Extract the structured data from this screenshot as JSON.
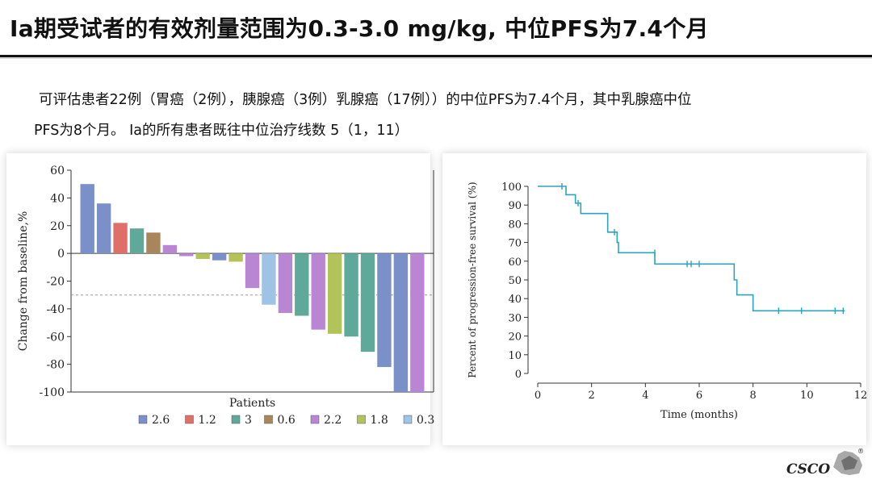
{
  "slide": {
    "title": "Ia期受试者的有效剂量范围为0.3-3.0 mg/kg, 中位PFS为7.4个月",
    "body_line1": "可评估患者22例（胃癌（2例），胰腺癌（3例）乳腺癌（17例））的中位PFS为7.4个月，其中乳腺癌中位",
    "body_line2": "PFS为8个月。 Ia的所有患者既往中位治疗线数 5（1，11）",
    "logo_text": "CSCO",
    "logo_mark": "®"
  },
  "chart_data": [
    {
      "type": "bar",
      "xlabel": "Patients",
      "ylabel": "Change from baseline,%",
      "ylim": [
        -100,
        60
      ],
      "yticks": [
        60,
        40,
        20,
        0,
        -20,
        -40,
        -60,
        -80,
        -100
      ],
      "reference_line": -30,
      "legend_position": "bottom",
      "legend": [
        {
          "label": "2.6",
          "color": "#7b8fc9"
        },
        {
          "label": "1.2",
          "color": "#e07067"
        },
        {
          "label": "3",
          "color": "#5fa99b"
        },
        {
          "label": "0.6",
          "color": "#a8855a"
        },
        {
          "label": "2.2",
          "color": "#b986d4"
        },
        {
          "label": "1.8",
          "color": "#b3c35a"
        },
        {
          "label": "0.3",
          "color": "#9ec3e4"
        }
      ],
      "bars": [
        {
          "dose": "2.6",
          "value": 50
        },
        {
          "dose": "2.6",
          "value": 36
        },
        {
          "dose": "1.2",
          "value": 22
        },
        {
          "dose": "3",
          "value": 18
        },
        {
          "dose": "0.6",
          "value": 15
        },
        {
          "dose": "2.2",
          "value": 6
        },
        {
          "dose": "2.2",
          "value": -2
        },
        {
          "dose": "1.8",
          "value": -4
        },
        {
          "dose": "2.6",
          "value": -5
        },
        {
          "dose": "1.8",
          "value": -6
        },
        {
          "dose": "2.2",
          "value": -25
        },
        {
          "dose": "0.3",
          "value": -37
        },
        {
          "dose": "2.2",
          "value": -43
        },
        {
          "dose": "3",
          "value": -45
        },
        {
          "dose": "2.2",
          "value": -55
        },
        {
          "dose": "1.8",
          "value": -58
        },
        {
          "dose": "3",
          "value": -60
        },
        {
          "dose": "3",
          "value": -71
        },
        {
          "dose": "2.6",
          "value": -82
        },
        {
          "dose": "2.6",
          "value": -100
        },
        {
          "dose": "2.2",
          "value": -100
        }
      ]
    },
    {
      "type": "line",
      "xlabel": "Time (months)",
      "ylabel": "Percent of progression-free survival (%)",
      "xlim": [
        0,
        12
      ],
      "ylim": [
        0,
        100
      ],
      "xticks": [
        0,
        2,
        4,
        6,
        8,
        10,
        12
      ],
      "yticks": [
        0,
        10,
        20,
        30,
        40,
        50,
        60,
        70,
        80,
        90,
        100
      ],
      "color": "#2ea3bd",
      "steps": [
        {
          "t": 0,
          "s": 100
        },
        {
          "t": 1.05,
          "s": 95.5
        },
        {
          "t": 1.4,
          "s": 91
        },
        {
          "t": 1.6,
          "s": 85.5
        },
        {
          "t": 2.6,
          "s": 75.5
        },
        {
          "t": 2.95,
          "s": 70
        },
        {
          "t": 3.0,
          "s": 64.5
        },
        {
          "t": 4.35,
          "s": 58.5
        },
        {
          "t": 7.3,
          "s": 50
        },
        {
          "t": 7.4,
          "s": 42
        },
        {
          "t": 8.0,
          "s": 33.5
        },
        {
          "t": 11.4,
          "s": 33.5
        }
      ],
      "censored": [
        {
          "t": 0.9,
          "s": 100
        },
        {
          "t": 1.5,
          "s": 91
        },
        {
          "t": 2.85,
          "s": 75.5
        },
        {
          "t": 4.35,
          "s": 64.5
        },
        {
          "t": 5.55,
          "s": 58.5
        },
        {
          "t": 5.7,
          "s": 58.5
        },
        {
          "t": 6.0,
          "s": 58.5
        },
        {
          "t": 8.95,
          "s": 33.5
        },
        {
          "t": 9.8,
          "s": 33.5
        },
        {
          "t": 11.05,
          "s": 33.5
        },
        {
          "t": 11.35,
          "s": 33.5
        }
      ]
    }
  ]
}
